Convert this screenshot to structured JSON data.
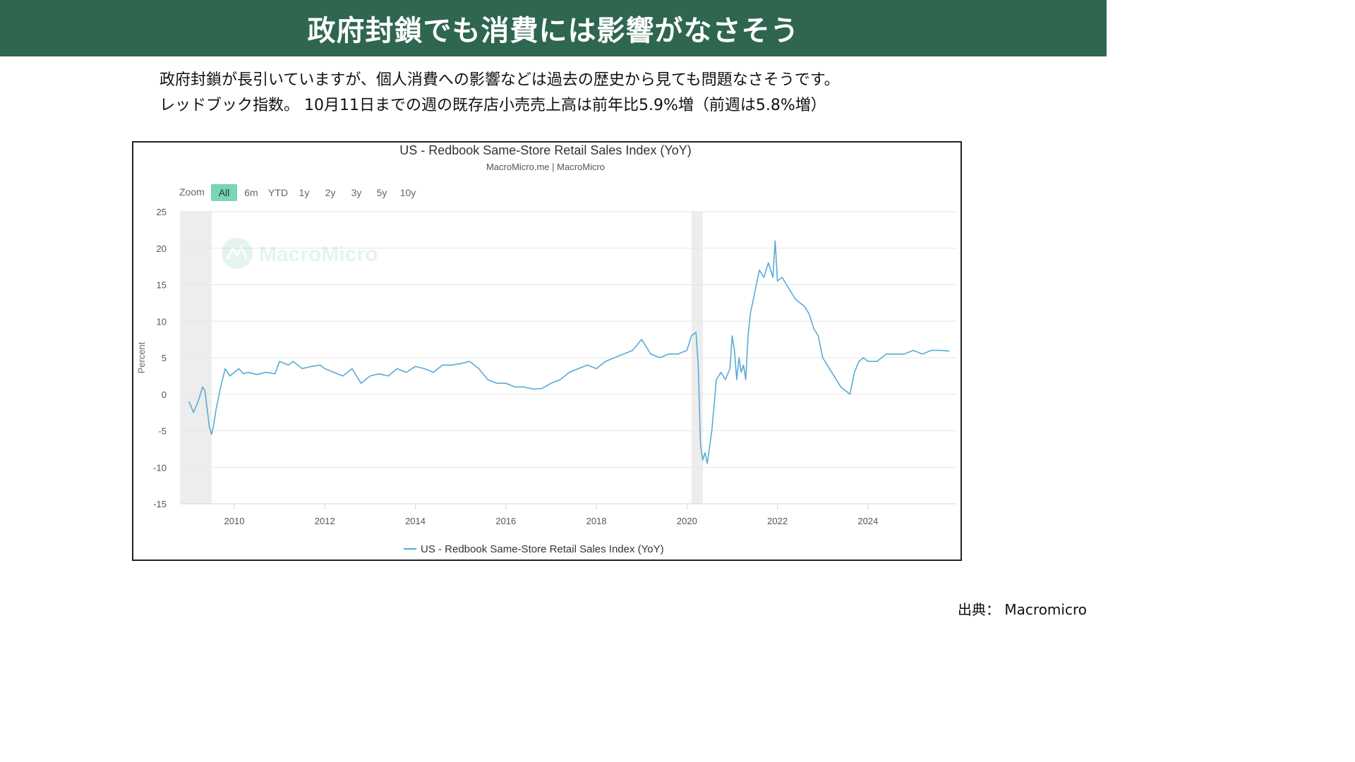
{
  "header": {
    "title": "政府封鎖でも消費には影響がなさそう"
  },
  "intro": {
    "line1": "政府封鎖が長引いていますが、個人消費への影響などは過去の歴史から見ても問題なさそうです。",
    "line2": "レッドブック指数。 10月11日までの週の既存店小売売上高は前年比5.9%増（前週は5.8%増）"
  },
  "source": {
    "label": "出典： Macromicro"
  },
  "colors": {
    "header_bg": "#2e6650",
    "line": "#5aaad8",
    "range_active": "#79d4b8",
    "recession_band": "#ededed",
    "grid": "#e6e6e6"
  },
  "chart_data": {
    "type": "line",
    "title": "US - Redbook Same-Store Retail Sales Index (YoY)",
    "subtitle": "MacroMicro.me | MacroMicro",
    "watermark": "MacroMicro",
    "ylabel": "Percent",
    "xlabel": "",
    "ylim": [
      -15,
      25
    ],
    "xlim": [
      2008.8,
      2025.95
    ],
    "y_ticks": [
      "25",
      "20",
      "15",
      "10",
      "5",
      "0",
      "-5",
      "-10",
      "-15"
    ],
    "x_ticks": [
      "2010",
      "2012",
      "2014",
      "2016",
      "2018",
      "2020",
      "2022",
      "2024"
    ],
    "grid": true,
    "legend_position": "bottom-center",
    "range_selector": {
      "label": "Zoom",
      "buttons": [
        "All",
        "6m",
        "YTD",
        "1y",
        "2y",
        "3y",
        "5y",
        "10y"
      ],
      "active": "All"
    },
    "shaded_periods": [
      [
        2008.8,
        2009.5
      ],
      [
        2020.1,
        2020.35
      ]
    ],
    "series": [
      {
        "name": "US - Redbook Same-Store Retail Sales Index (YoY)",
        "x": [
          2009.0,
          2009.1,
          2009.2,
          2009.3,
          2009.35,
          2009.45,
          2009.5,
          2009.55,
          2009.6,
          2009.7,
          2009.8,
          2009.9,
          2010.0,
          2010.1,
          2010.2,
          2010.3,
          2010.5,
          2010.7,
          2010.9,
          2011.0,
          2011.2,
          2011.3,
          2011.4,
          2011.5,
          2011.7,
          2011.9,
          2012.0,
          2012.2,
          2012.4,
          2012.6,
          2012.8,
          2013.0,
          2013.2,
          2013.4,
          2013.6,
          2013.8,
          2014.0,
          2014.2,
          2014.4,
          2014.6,
          2014.8,
          2015.0,
          2015.2,
          2015.4,
          2015.6,
          2015.8,
          2016.0,
          2016.2,
          2016.4,
          2016.6,
          2016.8,
          2017.0,
          2017.2,
          2017.4,
          2017.6,
          2017.8,
          2018.0,
          2018.2,
          2018.4,
          2018.6,
          2018.8,
          2019.0,
          2019.1,
          2019.2,
          2019.4,
          2019.6,
          2019.8,
          2020.0,
          2020.1,
          2020.2,
          2020.25,
          2020.3,
          2020.35,
          2020.4,
          2020.45,
          2020.55,
          2020.65,
          2020.75,
          2020.85,
          2020.95,
          2021.0,
          2021.05,
          2021.1,
          2021.15,
          2021.2,
          2021.25,
          2021.3,
          2021.35,
          2021.4,
          2021.5,
          2021.6,
          2021.7,
          2021.8,
          2021.9,
          2021.95,
          2022.0,
          2022.1,
          2022.2,
          2022.3,
          2022.4,
          2022.5,
          2022.6,
          2022.7,
          2022.8,
          2022.9,
          2023.0,
          2023.1,
          2023.2,
          2023.3,
          2023.4,
          2023.5,
          2023.6,
          2023.7,
          2023.8,
          2023.9,
          2024.0,
          2024.2,
          2024.4,
          2024.6,
          2024.8,
          2025.0,
          2025.2,
          2025.4,
          2025.6,
          2025.8
        ],
        "values": [
          -1.0,
          -2.5,
          -1.0,
          1.0,
          0.5,
          -4.5,
          -5.5,
          -4.0,
          -2.0,
          1.0,
          3.5,
          2.5,
          3.0,
          3.5,
          2.8,
          3.0,
          2.7,
          3.0,
          2.8,
          4.5,
          4.0,
          4.5,
          4.0,
          3.5,
          3.8,
          4.0,
          3.5,
          3.0,
          2.5,
          3.5,
          1.5,
          2.5,
          2.8,
          2.5,
          3.5,
          3.0,
          3.8,
          3.5,
          3.0,
          4.0,
          4.0,
          4.2,
          4.5,
          3.5,
          2.0,
          1.5,
          1.5,
          1.0,
          1.0,
          0.7,
          0.8,
          1.5,
          2.0,
          3.0,
          3.5,
          4.0,
          3.5,
          4.5,
          5.0,
          5.5,
          6.0,
          7.5,
          6.5,
          5.5,
          5.0,
          5.5,
          5.5,
          6.0,
          8.0,
          8.5,
          4.0,
          -7.0,
          -9.0,
          -8.0,
          -9.5,
          -5.0,
          2.0,
          3.0,
          2.0,
          3.5,
          8.0,
          6.0,
          2.0,
          5.0,
          3.0,
          4.0,
          2.0,
          8.0,
          11.0,
          14.0,
          17.0,
          16.0,
          18.0,
          16.0,
          21.0,
          15.5,
          16.0,
          15.0,
          14.0,
          13.0,
          12.5,
          12.0,
          11.0,
          9.0,
          8.0,
          5.0,
          4.0,
          3.0,
          2.0,
          1.0,
          0.5,
          0.0,
          3.0,
          4.5,
          5.0,
          4.5,
          4.5,
          5.5,
          5.5,
          5.5,
          6.0,
          5.5,
          6.0,
          6.0,
          5.9
        ]
      }
    ]
  }
}
